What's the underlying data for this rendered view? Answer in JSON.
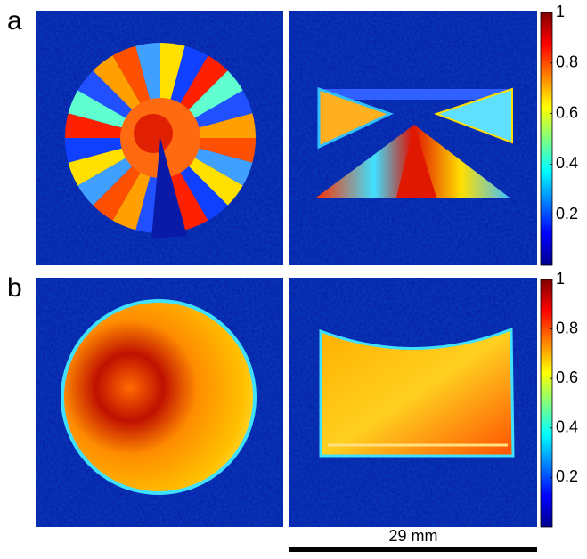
{
  "panels": [
    {
      "label": "a",
      "colorbar": {
        "lim": [
          0,
          1
        ],
        "ticks": [
          0.2,
          0.4,
          0.6,
          0.8,
          1
        ]
      }
    },
    {
      "label": "b",
      "colorbar": {
        "lim": [
          0,
          1
        ],
        "ticks": [
          0.2,
          0.4,
          0.6,
          0.8,
          1
        ]
      }
    }
  ],
  "scale_bar": {
    "label": "29 mm"
  }
}
